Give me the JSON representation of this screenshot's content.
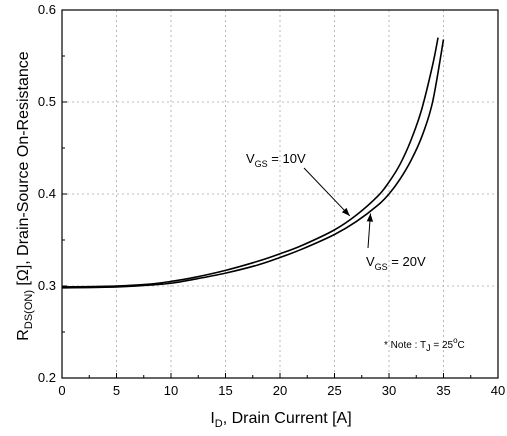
{
  "chart_data": {
    "type": "line",
    "title": "",
    "xlabel": {
      "main": "I",
      "sub": "D",
      "rest": ", Drain Current [A]"
    },
    "ylabel": {
      "main": "R",
      "sub": "DS(ON)",
      "rest": " [Ω], Drain-Source On-Resistance"
    },
    "xlim": [
      0,
      40
    ],
    "ylim": [
      0.2,
      0.6
    ],
    "xticks": [
      "0",
      "5",
      "10",
      "15",
      "20",
      "25",
      "30",
      "35",
      "40"
    ],
    "yticks": [
      "0.2",
      "0.3",
      "0.4",
      "0.5",
      "0.6"
    ],
    "grid": true,
    "series": [
      {
        "name": "VGS = 10V",
        "x": [
          0,
          5,
          8,
          10,
          12,
          15,
          18,
          20,
          22,
          25,
          27,
          29,
          30,
          31,
          32,
          33,
          34,
          34.5
        ],
        "y": [
          0.299,
          0.3,
          0.302,
          0.305,
          0.309,
          0.317,
          0.327,
          0.335,
          0.344,
          0.361,
          0.377,
          0.398,
          0.413,
          0.432,
          0.458,
          0.492,
          0.54,
          0.57
        ]
      },
      {
        "name": "VGS = 20V",
        "x": [
          0,
          5,
          8,
          10,
          12,
          15,
          18,
          20,
          22,
          25,
          27,
          29,
          30,
          31,
          32,
          33,
          34,
          35
        ],
        "y": [
          0.298,
          0.299,
          0.301,
          0.303,
          0.307,
          0.314,
          0.323,
          0.331,
          0.34,
          0.356,
          0.37,
          0.388,
          0.4,
          0.416,
          0.436,
          0.462,
          0.5,
          0.568
        ]
      }
    ],
    "annotations": [
      {
        "main": "V",
        "sub": "GS",
        "rest": " = 10V"
      },
      {
        "main": "V",
        "sub": "GS",
        "rest": " = 20V"
      }
    ],
    "note": {
      "main": "* Note : T",
      "sub": "J",
      "mid": " = 25",
      "sup": "o",
      "rest": "C"
    }
  }
}
